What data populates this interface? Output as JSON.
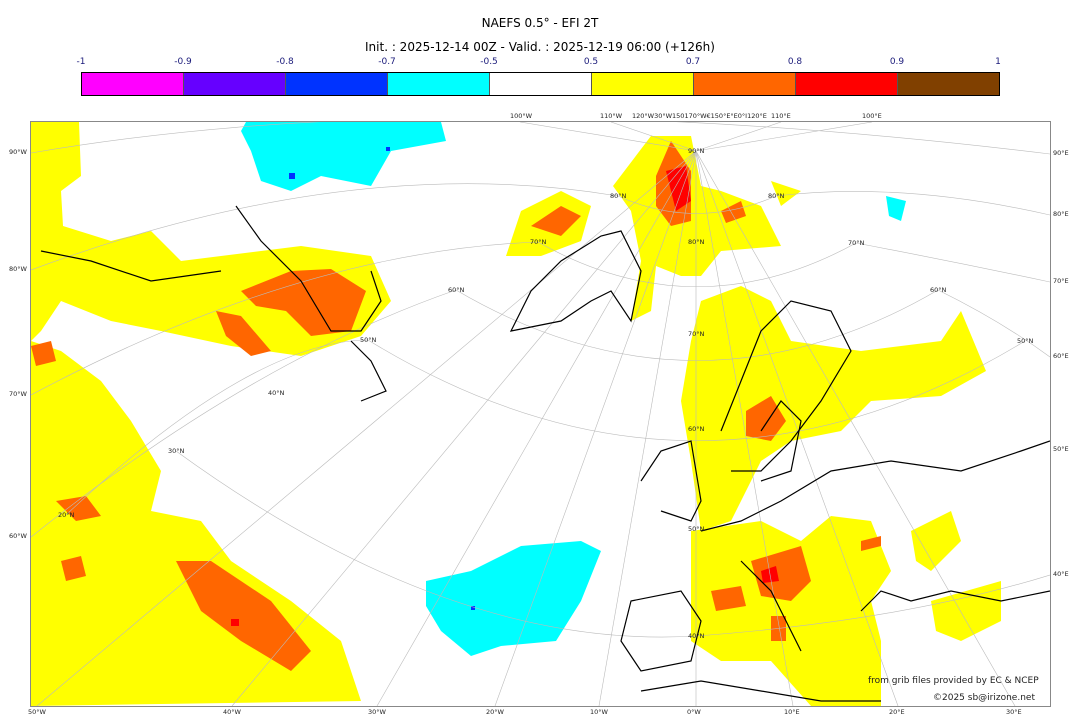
{
  "title": "NAEFS 0.5° - EFI 2T",
  "subtitle": "Init. : 2025-12-14 00Z - Valid. : 2025-12-19 06:00 (+126h)",
  "colorbar": {
    "ticks": [
      "-1",
      "-0.9",
      "-0.8",
      "-0.7",
      "-0.5",
      "0.5",
      "0.7",
      "0.8",
      "0.9",
      "1"
    ],
    "colors": [
      "#ff00ff",
      "#6600ff",
      "#0033ff",
      "#00ffff",
      "#ffffff",
      "#ffff00",
      "#ff6600",
      "#ff0000",
      "#804000"
    ]
  },
  "map": {
    "left_labels": [
      "90°W",
      "80°W",
      "70°W",
      "60°W"
    ],
    "right_labels": [
      "90°E",
      "80°E",
      "70°E",
      "60°E",
      "50°E",
      "40°E"
    ],
    "bottom_labels": [
      "50°W",
      "40°W",
      "30°W",
      "20°W",
      "10°W",
      "0°W",
      "10°E",
      "20°E",
      "30°E"
    ],
    "top_labels": [
      "100°W",
      "110°W",
      "120°W30°W150170°W€150°E°E0°I120°E",
      "110°E",
      "100°E"
    ],
    "lat_labels": [
      "90°N",
      "80°N",
      "70°N",
      "60°N",
      "50°N",
      "40°N",
      "20°N",
      "30°N",
      "40°N",
      "50°N",
      "60°N",
      "70°N",
      "80°N",
      "80°N",
      "70°N",
      "60°N",
      "50°N"
    ]
  },
  "credits": {
    "source": "from grib files provided by EC & NCEP",
    "copyright": "©2025 sb@irizone.net"
  }
}
